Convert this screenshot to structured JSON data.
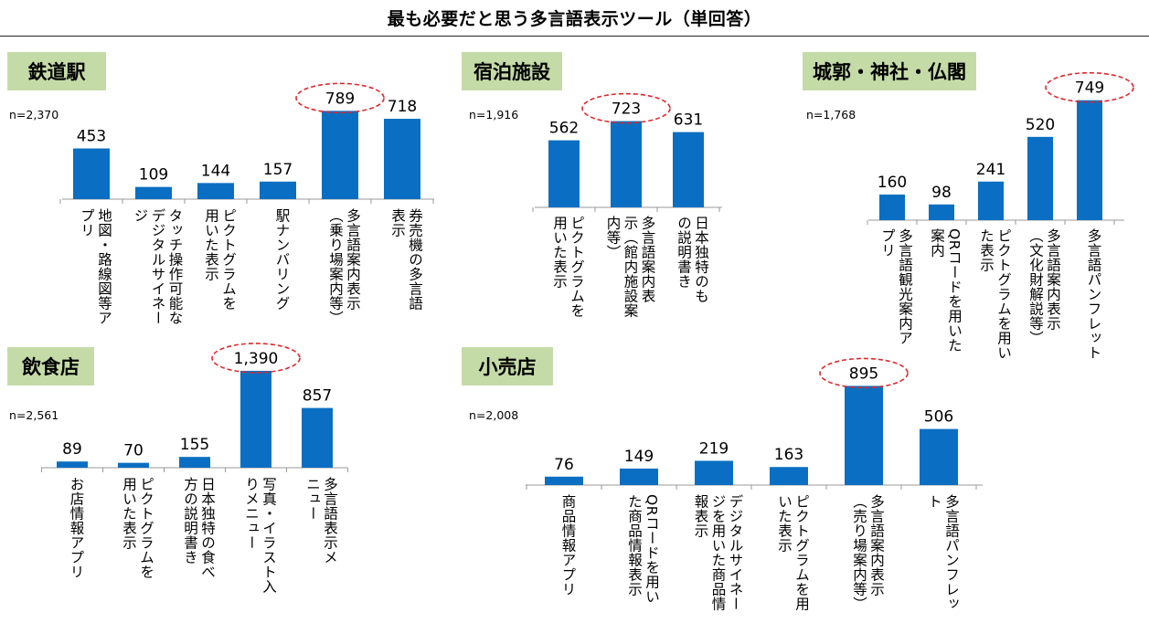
{
  "title": "最も必要だと思う多言語表示ツール（単回答）",
  "chart_data": [
    {
      "type": "bar",
      "title": "鉄道駅",
      "n": "n=2,370",
      "categories": [
        "地図・路線図等ア\nプリ",
        "タッチ操作可能な\nデジタルサイネー\nジ",
        "ピクトグラムを\n用いた表示",
        "駅ナンバリング",
        "多言語案内表示\n（乗り場案内等）",
        "券売機の多言語\n表示"
      ],
      "values": [
        453,
        109,
        144,
        157,
        789,
        718
      ],
      "highlight": 4
    },
    {
      "type": "bar",
      "title": "宿泊施設",
      "n": "n=1,916",
      "categories": [
        "ピクトグラムを\n用いた表示",
        "多言語案内表\n示（館内施設案\n内等）",
        "日本独特のも\nの説明書き"
      ],
      "values": [
        562,
        723,
        631
      ],
      "highlight": 1
    },
    {
      "type": "bar",
      "title": "城郭・神社・仏閣",
      "n": "n=1,768",
      "categories": [
        "多言語観光案内ア\nプリ",
        "QRコードを用いた\n案内",
        "ピクトグラムを用い\nた表示",
        "多言語案内表示\n（文化財解説等）",
        "多言語パンフレット"
      ],
      "values": [
        160,
        98,
        241,
        520,
        749
      ],
      "highlight": 4
    },
    {
      "type": "bar",
      "title": "飲食店",
      "n": "n=2,561",
      "categories": [
        "お店情報アプリ",
        "ピクトグラムを\n用いた表示",
        "日本独特の食べ\n方の説明書き",
        "写真・イラスト入\nりメニュー",
        "多言語表示メ\nニュー"
      ],
      "values": [
        89,
        70,
        155,
        1390,
        857
      ],
      "value_labels": [
        "89",
        "70",
        "155",
        "1,390",
        "857"
      ],
      "highlight": 3
    },
    {
      "type": "bar",
      "title": "小売店",
      "n": "n=2,008",
      "categories": [
        "商品情報アプリ",
        "QRコードを用い\nた商品情報表示",
        "デジタルサイネー\nジを用いた商品情\n報表示",
        "ピクトグラムを用\nいた表示",
        "多言語案内表示\n（売り場案内等）",
        "多言語パンフレッ\nト"
      ],
      "values": [
        76,
        149,
        219,
        163,
        895,
        506
      ],
      "highlight": 4
    }
  ]
}
